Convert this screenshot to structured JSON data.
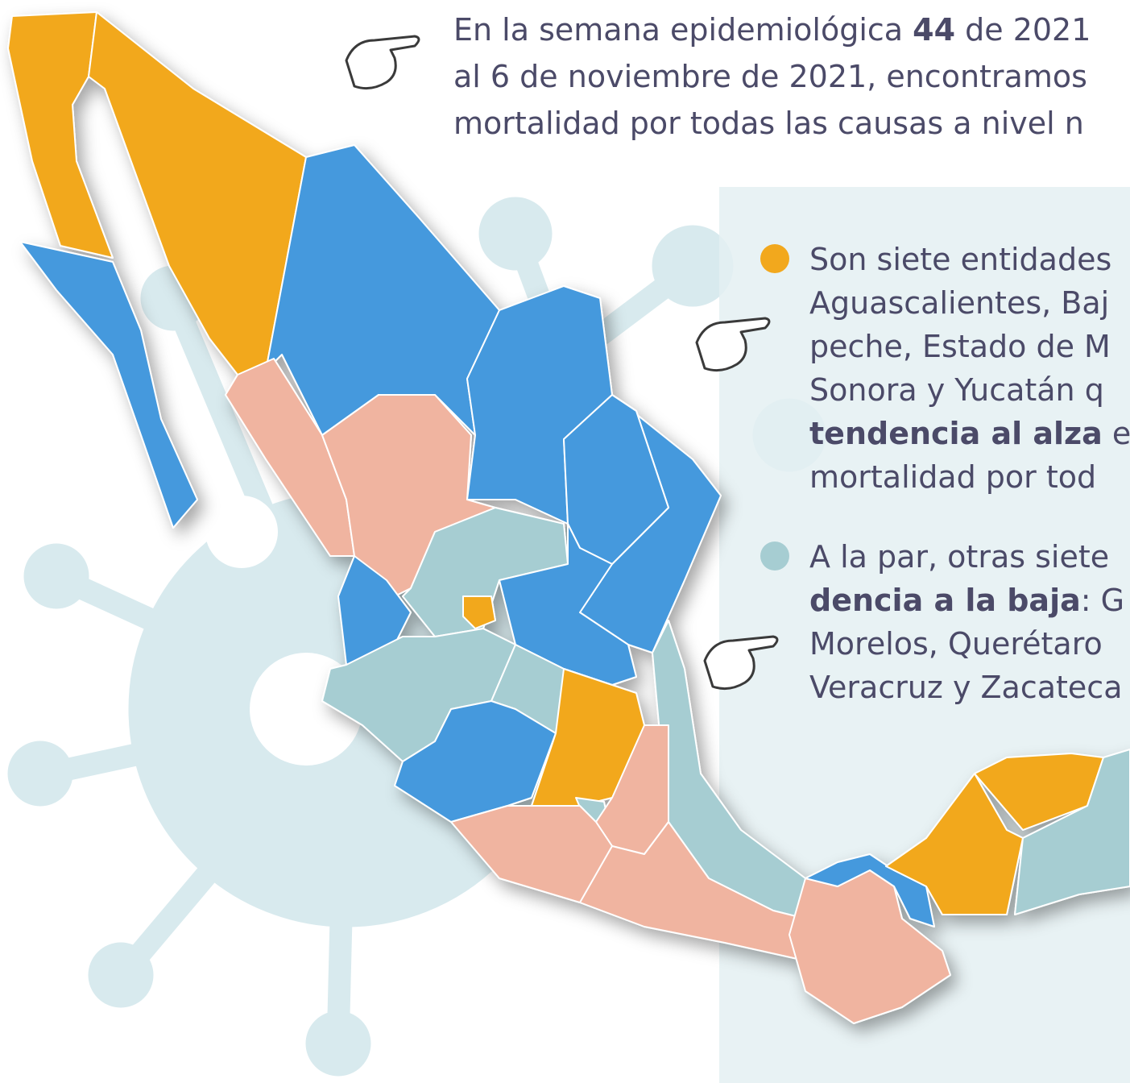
{
  "header": {
    "lines": [
      [
        {
          "text": "En la semana epidemiológica "
        },
        {
          "text": "44",
          "bold": true
        },
        {
          "text": " de 2021"
        }
      ],
      [
        {
          "text": "al 6 de noviembre de 2021, encontramos"
        }
      ],
      [
        {
          "text": "mortalidad por todas las causas a nivel n"
        }
      ]
    ]
  },
  "legend": {
    "items": [
      {
        "color": "#f2a81d",
        "lines": [
          [
            {
              "text": "Son siete entidades"
            }
          ],
          [
            {
              "text": "Aguascalientes, Baj"
            }
          ],
          [
            {
              "text": "peche, Estado de M"
            }
          ],
          [
            {
              "text": "Sonora y Yucatán q"
            }
          ],
          [
            {
              "text": "tendencia al alza",
              "bold": true
            },
            {
              "text": " e"
            }
          ],
          [
            {
              "text": "mortalidad por tod"
            }
          ]
        ]
      },
      {
        "color": "#a6cdd2",
        "lines": [
          [
            {
              "text": "A la par, otras siete"
            }
          ],
          [
            {
              "text": "dencia a la baja",
              "bold": true
            },
            {
              "text": ": G"
            }
          ],
          [
            {
              "text": "Morelos, Querétaro"
            }
          ],
          [
            {
              "text": "Veracruz y Zacateca"
            }
          ]
        ]
      }
    ]
  }
}
